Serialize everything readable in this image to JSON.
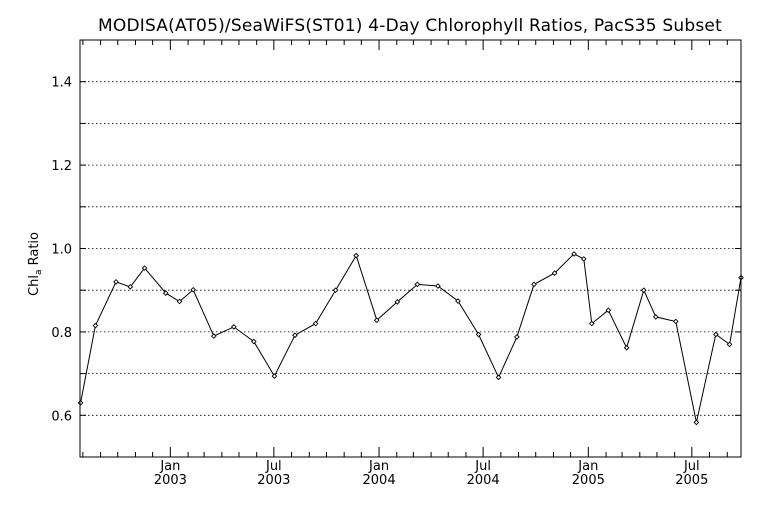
{
  "chart_data": {
    "type": "line",
    "title": "MODISA(AT05)/SeaWiFS(ST01) 4-Day Chlorophyll Ratios, PacS35 Subset",
    "ylabel": "Chl",
    "ylabel_sub": "a",
    "ylabel_rest": " Ratio",
    "xlabel": "",
    "ylim": [
      0.5,
      1.5
    ],
    "xlim": [
      "2002-07-27",
      "2005-09-25"
    ],
    "grid": true,
    "yticks": [
      {
        "value": 0.6,
        "label": "0.6"
      },
      {
        "value": 0.8,
        "label": "0.8"
      },
      {
        "value": 1.0,
        "label": "1.0"
      },
      {
        "value": 1.2,
        "label": "1.2"
      },
      {
        "value": 1.4,
        "label": "1.4"
      }
    ],
    "ygrid": [
      0.6,
      0.7,
      0.8,
      0.9,
      1.0,
      1.1,
      1.2,
      1.3,
      1.4
    ],
    "xticks": [
      {
        "date": "2003-01-01",
        "month": "Jan",
        "year": "2003"
      },
      {
        "date": "2003-07-01",
        "month": "Jul",
        "year": "2003"
      },
      {
        "date": "2004-01-01",
        "month": "Jan",
        "year": "2004"
      },
      {
        "date": "2004-07-01",
        "month": "Jul",
        "year": "2004"
      },
      {
        "date": "2005-01-01",
        "month": "Jan",
        "year": "2005"
      },
      {
        "date": "2005-07-01",
        "month": "Jul",
        "year": "2005"
      }
    ],
    "xminor": [
      "2002-08-01",
      "2002-09-01",
      "2002-10-01",
      "2002-11-01",
      "2002-12-01",
      "2003-02-01",
      "2003-03-01",
      "2003-04-01",
      "2003-05-01",
      "2003-06-01",
      "2003-08-01",
      "2003-09-01",
      "2003-10-01",
      "2003-11-01",
      "2003-12-01",
      "2004-02-01",
      "2004-03-01",
      "2004-04-01",
      "2004-05-01",
      "2004-06-01",
      "2004-08-01",
      "2004-09-01",
      "2004-10-01",
      "2004-11-01",
      "2004-12-01",
      "2005-02-01",
      "2005-03-01",
      "2005-04-01",
      "2005-05-01",
      "2005-06-01",
      "2005-08-01",
      "2005-09-01"
    ],
    "series": [
      {
        "x": [
          "2002-07-28",
          "2002-08-23",
          "2002-09-28",
          "2002-10-23",
          "2002-11-17",
          "2002-12-24",
          "2003-01-17",
          "2003-02-10",
          "2003-03-18",
          "2003-04-22",
          "2003-05-27",
          "2003-07-02",
          "2003-08-07",
          "2003-09-12",
          "2003-10-17",
          "2003-11-22",
          "2003-12-28",
          "2004-02-02",
          "2004-03-08",
          "2004-04-13",
          "2004-05-18",
          "2004-06-23",
          "2004-07-28",
          "2004-08-29",
          "2004-09-28",
          "2004-11-03",
          "2004-12-07",
          "2004-12-24",
          "2005-01-07",
          "2005-02-05",
          "2005-03-09",
          "2005-04-08",
          "2005-04-29",
          "2005-06-03",
          "2005-07-09",
          "2005-08-12",
          "2005-09-05",
          "2005-09-25"
        ],
        "values": [
          0.63,
          0.815,
          0.92,
          0.908,
          0.953,
          0.893,
          0.873,
          0.901,
          0.79,
          0.812,
          0.777,
          0.694,
          0.792,
          0.82,
          0.9,
          0.983,
          0.828,
          0.872,
          0.914,
          0.91,
          0.874,
          0.794,
          0.691,
          0.788,
          0.914,
          0.941,
          0.987,
          0.975,
          0.82,
          0.852,
          0.762,
          0.9,
          0.836,
          0.825,
          0.583,
          0.794,
          0.77,
          0.93
        ]
      }
    ]
  }
}
